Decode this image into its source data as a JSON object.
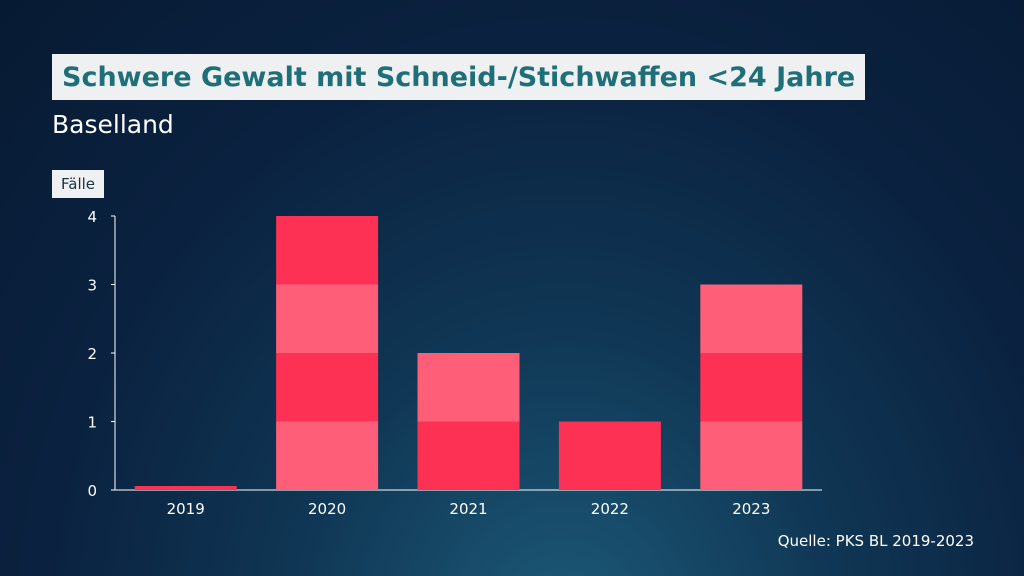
{
  "header": {
    "title": "Schwere Gewalt mit Schneid-/Stichwaffen <24 Jahre",
    "subtitle": "Baselland"
  },
  "source": "Quelle: PKS BL 2019-2023",
  "chart_data": {
    "type": "bar",
    "unit_label": "Fälle",
    "categories": [
      "2019",
      "2020",
      "2021",
      "2022",
      "2023"
    ],
    "values": [
      0,
      4,
      2,
      1,
      3
    ],
    "y_ticks": [
      "0",
      "1",
      "2",
      "3",
      "4"
    ],
    "ylim": [
      0,
      4
    ],
    "grid": false,
    "colors": {
      "light": "#fe5e78",
      "dark": "#fc3153"
    }
  }
}
